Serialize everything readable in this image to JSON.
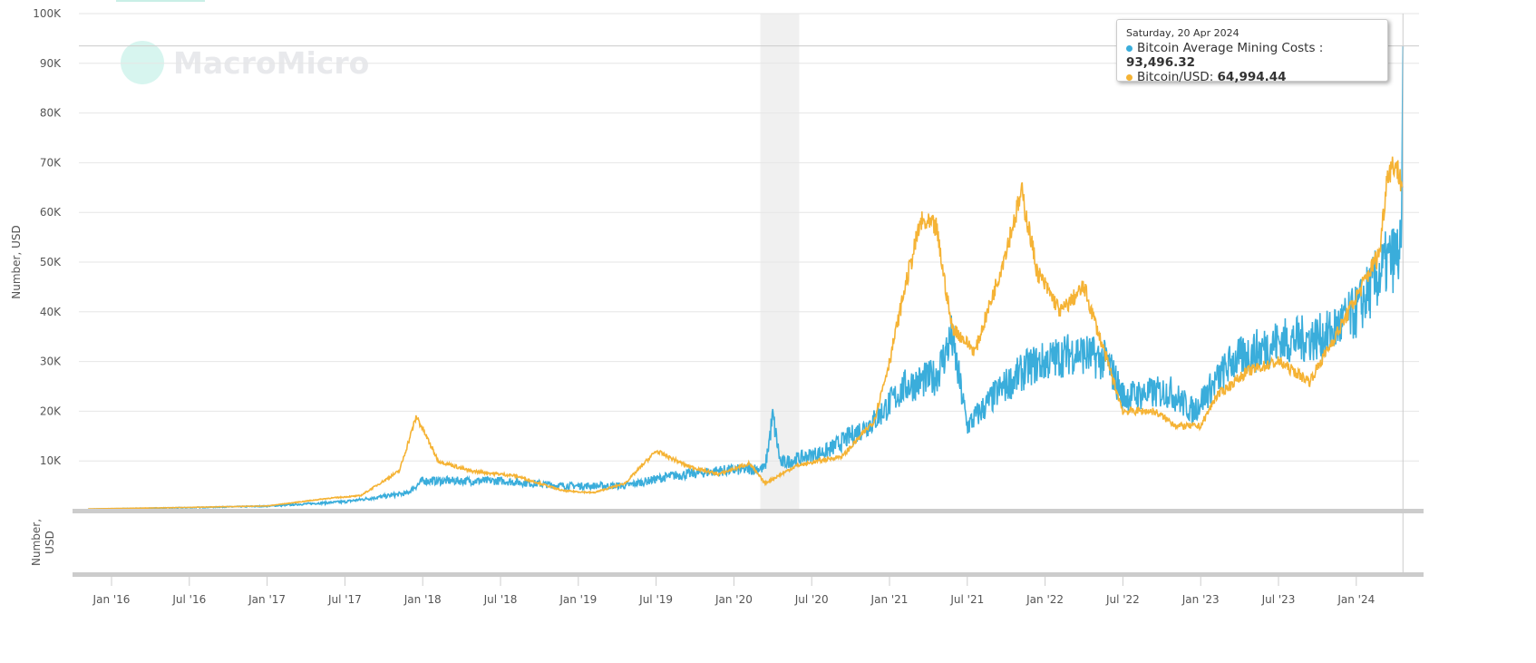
{
  "logo": {
    "text": "MacroMicro"
  },
  "tooltip": {
    "date": "Saturday, 20 Apr 2024",
    "series1_label": "Bitcoin Average Mining Costs : ",
    "series1_value": "93,496.32",
    "series2_label": "Bitcoin/USD: ",
    "series2_value": "64,994.44"
  },
  "chart_data": {
    "type": "line",
    "ylabel": "Number, USD",
    "lower_ylabel": "Number, USD",
    "yticks": [
      "10K",
      "20K",
      "30K",
      "40K",
      "50K",
      "60K",
      "70K",
      "80K",
      "90K",
      "100K"
    ],
    "ylim": [
      0,
      100000
    ],
    "xticks": [
      "Jan '16",
      "Jul '16",
      "Jan '17",
      "Jul '17",
      "Jan '18",
      "Jul '18",
      "Jan '19",
      "Jul '19",
      "Jan '20",
      "Jul '20",
      "Jan '21",
      "Jul '21",
      "Jan '22",
      "Jul '22",
      "Jan '23",
      "Jul '23",
      "Jan '24"
    ],
    "xlim": [
      2015.8,
      2024.35
    ],
    "shaded_region": [
      2020.17,
      2020.42
    ],
    "colors": {
      "mining_cost": "#3aaddb",
      "btc": "#f5b335"
    },
    "series": [
      {
        "name": "Bitcoin Average Mining Costs",
        "key": "mining_cost",
        "points": [
          [
            2015.85,
            300
          ],
          [
            2016.5,
            600
          ],
          [
            2017.0,
            900
          ],
          [
            2017.5,
            1800
          ],
          [
            2017.9,
            3500
          ],
          [
            2018.0,
            6000
          ],
          [
            2018.5,
            6000
          ],
          [
            2018.9,
            5000
          ],
          [
            2019.3,
            5000
          ],
          [
            2019.6,
            7000
          ],
          [
            2019.9,
            8000
          ],
          [
            2020.2,
            8500
          ],
          [
            2020.25,
            19000
          ],
          [
            2020.3,
            9500
          ],
          [
            2020.6,
            12000
          ],
          [
            2020.9,
            18000
          ],
          [
            2021.1,
            25000
          ],
          [
            2021.3,
            27000
          ],
          [
            2021.4,
            35000
          ],
          [
            2021.5,
            17000
          ],
          [
            2021.7,
            24000
          ],
          [
            2021.9,
            29000
          ],
          [
            2022.2,
            32000
          ],
          [
            2022.4,
            30000
          ],
          [
            2022.5,
            23000
          ],
          [
            2022.8,
            24000
          ],
          [
            2022.95,
            20000
          ],
          [
            2023.2,
            30000
          ],
          [
            2023.5,
            34000
          ],
          [
            2023.8,
            35000
          ],
          [
            2024.0,
            40000
          ],
          [
            2024.2,
            50000
          ],
          [
            2024.29,
            52000
          ],
          [
            2024.3,
            93496.32
          ]
        ]
      },
      {
        "name": "Bitcoin/USD",
        "key": "btc",
        "points": [
          [
            2015.85,
            350
          ],
          [
            2016.5,
            650
          ],
          [
            2017.0,
            950
          ],
          [
            2017.4,
            2500
          ],
          [
            2017.6,
            3000
          ],
          [
            2017.85,
            8000
          ],
          [
            2017.96,
            19000
          ],
          [
            2018.1,
            10000
          ],
          [
            2018.3,
            8000
          ],
          [
            2018.6,
            7000
          ],
          [
            2018.9,
            4000
          ],
          [
            2019.1,
            3600
          ],
          [
            2019.3,
            5500
          ],
          [
            2019.5,
            12000
          ],
          [
            2019.7,
            9000
          ],
          [
            2019.9,
            7300
          ],
          [
            2020.1,
            9500
          ],
          [
            2020.2,
            5500
          ],
          [
            2020.4,
            9000
          ],
          [
            2020.7,
            11000
          ],
          [
            2020.9,
            18000
          ],
          [
            2021.0,
            30000
          ],
          [
            2021.1,
            45000
          ],
          [
            2021.2,
            58000
          ],
          [
            2021.3,
            57000
          ],
          [
            2021.4,
            37000
          ],
          [
            2021.55,
            32000
          ],
          [
            2021.7,
            47000
          ],
          [
            2021.85,
            64000
          ],
          [
            2021.95,
            48000
          ],
          [
            2022.1,
            40000
          ],
          [
            2022.25,
            45000
          ],
          [
            2022.4,
            30000
          ],
          [
            2022.5,
            20000
          ],
          [
            2022.7,
            20000
          ],
          [
            2022.85,
            17000
          ],
          [
            2023.0,
            17000
          ],
          [
            2023.1,
            23000
          ],
          [
            2023.3,
            28000
          ],
          [
            2023.5,
            30000
          ],
          [
            2023.7,
            26000
          ],
          [
            2023.9,
            37000
          ],
          [
            2024.0,
            43000
          ],
          [
            2024.15,
            52000
          ],
          [
            2024.2,
            68000
          ],
          [
            2024.25,
            70000
          ],
          [
            2024.3,
            64994.44
          ]
        ]
      }
    ]
  }
}
